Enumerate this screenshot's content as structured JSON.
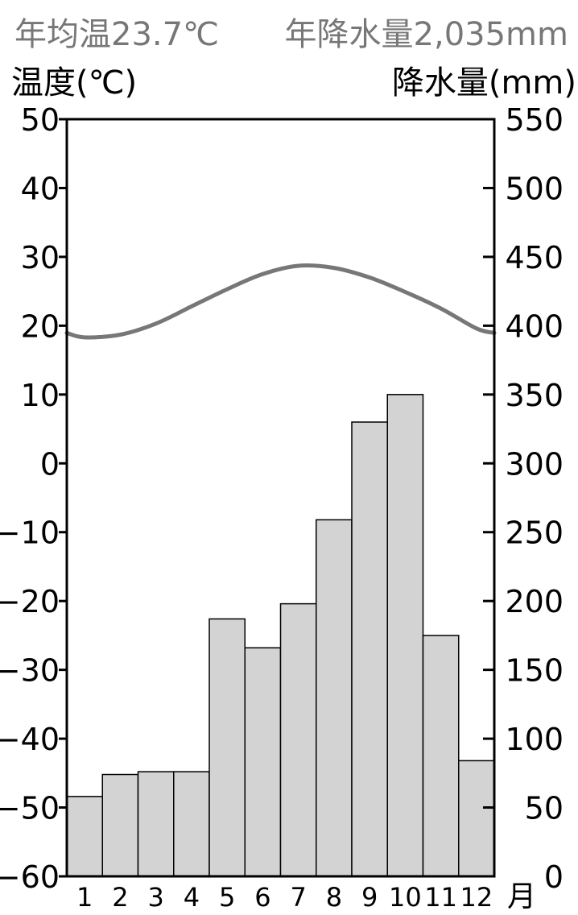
{
  "header": {
    "avg_temp": "年均温23.7℃",
    "annual_precip": "年降水量2,035mm"
  },
  "colors": {
    "header_text": "#777777",
    "bar_fill": "#d3d3d3",
    "line": "#777777",
    "axis": "#000000"
  },
  "chart_data": {
    "type": "bar",
    "categories": [
      "1",
      "2",
      "3",
      "4",
      "5",
      "6",
      "7",
      "8",
      "9",
      "10",
      "11",
      "12"
    ],
    "xlabel": "月",
    "y_left": {
      "label": "温度(℃)",
      "range": [
        -60,
        50
      ],
      "ticks": [
        "50",
        "40",
        "30",
        "20",
        "10",
        "0",
        "−10",
        "−20",
        "−30",
        "−40",
        "−50",
        "−60"
      ]
    },
    "y_right": {
      "label": "降水量(mm)",
      "range": [
        0,
        550
      ],
      "ticks": [
        "550",
        "500",
        "450",
        "400",
        "350",
        "300",
        "250",
        "200",
        "150",
        "100",
        "50",
        "0"
      ]
    },
    "series": [
      {
        "type": "bar",
        "axis": "right",
        "values": [
          58,
          74,
          76,
          76,
          187,
          166,
          198,
          259,
          330,
          350,
          175,
          84
        ]
      },
      {
        "type": "line",
        "axis": "left",
        "values": [
          18.3,
          18.7,
          20.3,
          22.8,
          25.3,
          27.5,
          28.7,
          28.4,
          27.0,
          24.9,
          22.5,
          19.6
        ]
      }
    ],
    "grid": false
  }
}
